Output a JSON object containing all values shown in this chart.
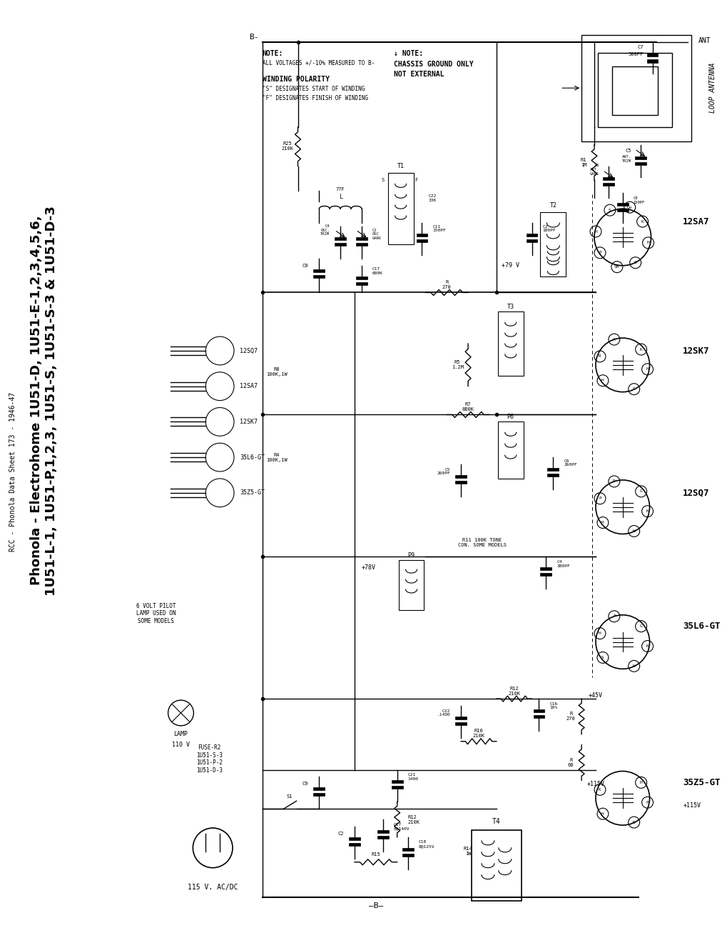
{
  "title_line1": "Phonola - Electrohome 1U51-D, 1U51-E-1,2,3,4,5,6,",
  "title_line2": "1U51-L-1, 1U51-P,1,2,3, 1U51-S, 1U51-S-3 & 1U51-D-3",
  "subtitle": "RCC - Phonola Data Sheet 173 - 1946-47",
  "bg_color": "#ffffff",
  "line_color": "#000000",
  "tube_labels": [
    "12SA7",
    "12SK7",
    "12SQ7",
    "35L6-GT",
    "35Z5-GT"
  ],
  "antenna_label": "LOOP ANTENNA",
  "ant_terminal": "ANT",
  "ant_trim": "ANT. TRIM"
}
